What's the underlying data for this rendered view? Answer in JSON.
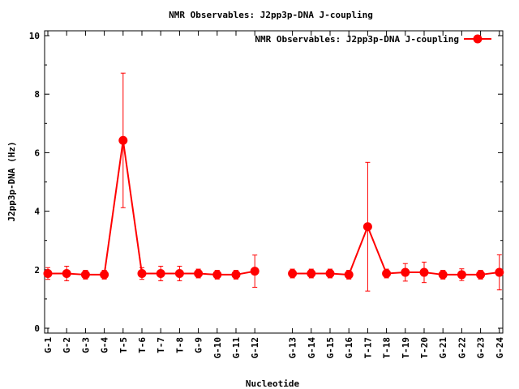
{
  "chart_data": {
    "type": "line",
    "title": "NMR Observables: J2pp3p-DNA J-coupling",
    "xlabel": "Nucleotide",
    "ylabel": "J2pp3p-DNA (Hz)",
    "ylim": [
      0,
      10
    ],
    "yticks": [
      0,
      2,
      4,
      6,
      8,
      10
    ],
    "grid": false,
    "legend_position": "top-right",
    "series": [
      {
        "name": "NMR Observables: J2pp3p-DNA J-coupling",
        "color": "#ff0000",
        "segments": [
          {
            "labels": [
              "G-1",
              "G-2",
              "G-3",
              "G-4",
              "T-5",
              "T-6",
              "T-7",
              "T-8",
              "G-9",
              "G-10",
              "G-11",
              "G-12"
            ],
            "values": [
              1.87,
              1.87,
              1.83,
              1.83,
              6.42,
              1.87,
              1.87,
              1.87,
              1.87,
              1.83,
              1.83,
              1.95
            ],
            "errors": [
              0.2,
              0.25,
              0.15,
              0.15,
              2.3,
              0.2,
              0.25,
              0.25,
              0.15,
              0.15,
              0.15,
              0.55
            ]
          },
          {
            "labels": [
              "G-13",
              "G-14",
              "G-15",
              "G-16",
              "T-17",
              "T-18",
              "T-19",
              "T-20",
              "G-21",
              "G-22",
              "G-23",
              "G-24"
            ],
            "values": [
              1.87,
              1.87,
              1.87,
              1.83,
              3.47,
              1.87,
              1.91,
              1.91,
              1.83,
              1.83,
              1.83,
              1.91
            ],
            "errors": [
              0.15,
              0.15,
              0.15,
              0.15,
              2.2,
              0.15,
              0.3,
              0.35,
              0.15,
              0.2,
              0.15,
              0.6
            ]
          }
        ]
      }
    ]
  }
}
